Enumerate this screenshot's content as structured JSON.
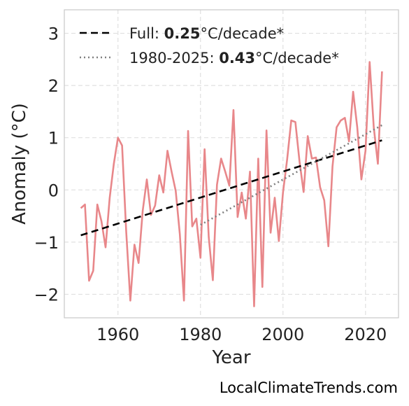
{
  "chart_data": {
    "type": "line",
    "title": "",
    "xlabel": "Year",
    "ylabel": "Anomaly (°C)",
    "xlim": [
      1947,
      2028
    ],
    "ylim": [
      -2.45,
      3.45
    ],
    "xticks": [
      1960,
      1980,
      2000,
      2020
    ],
    "yticks": [
      -2,
      -1,
      0,
      1,
      2,
      3
    ],
    "ytick_labels": [
      "−2",
      "−1",
      "0",
      "1",
      "2",
      "3"
    ],
    "grid": true,
    "legend_position": "top-left",
    "colors": {
      "series": "#e8878a",
      "full_trend": "#000000",
      "recent_trend": "#808080"
    },
    "legend": {
      "full_prefix": "Full: ",
      "full_value": "0.25",
      "full_suffix": "°C/decade*",
      "recent_prefix": "1980-2025: ",
      "recent_value": "0.43",
      "recent_suffix": "°C/decade*"
    },
    "credit": "LocalClimateTrends.com",
    "series": [
      {
        "x": [
          1951,
          1952,
          1953,
          1954,
          1955,
          1956,
          1957,
          1958,
          1959,
          1960,
          1961,
          1962,
          1963,
          1964,
          1965,
          1966,
          1967,
          1968,
          1969,
          1970,
          1971,
          1972,
          1973,
          1974,
          1975,
          1976,
          1977,
          1978,
          1979,
          1980,
          1981,
          1982,
          1983,
          1984,
          1985,
          1986,
          1987,
          1988,
          1989,
          1990,
          1991,
          1992,
          1993,
          1994,
          1995,
          1996,
          1997,
          1998,
          1999,
          2000,
          2001,
          2002,
          2003,
          2004,
          2005,
          2006,
          2007,
          2008,
          2009,
          2010,
          2011,
          2012,
          2013,
          2014,
          2015,
          2016,
          2017,
          2018,
          2019,
          2020,
          2021,
          2022,
          2023,
          2024
        ],
        "values": [
          -0.35,
          -0.28,
          -1.74,
          -1.55,
          -0.28,
          -0.6,
          -1.1,
          -0.15,
          0.5,
          1.0,
          0.85,
          -0.8,
          -2.12,
          -1.05,
          -1.4,
          -0.4,
          0.2,
          -0.48,
          -0.3,
          0.28,
          -0.05,
          0.75,
          0.35,
          -0.02,
          -0.85,
          -2.12,
          1.13,
          -0.7,
          -0.55,
          -1.3,
          0.78,
          -0.9,
          -1.73,
          0.1,
          0.6,
          0.35,
          0.08,
          1.53,
          -0.52,
          -0.05,
          -0.55,
          0.35,
          -2.23,
          0.6,
          -1.86,
          1.14,
          -0.82,
          -0.15,
          -0.98,
          -0.05,
          0.58,
          1.33,
          1.3,
          0.55,
          -0.04,
          1.03,
          0.6,
          0.62,
          0.05,
          -0.2,
          -1.08,
          0.45,
          1.2,
          1.33,
          1.38,
          0.93,
          1.88,
          1.2,
          0.2,
          0.75,
          2.45,
          1.2,
          0.5,
          2.27
        ]
      }
    ],
    "trend_full": {
      "x": [
        1951,
        2024
      ],
      "y": [
        -0.87,
        0.95
      ]
    },
    "trend_recent": {
      "x": [
        1980,
        2024
      ],
      "y": [
        -0.67,
        1.24
      ]
    }
  }
}
